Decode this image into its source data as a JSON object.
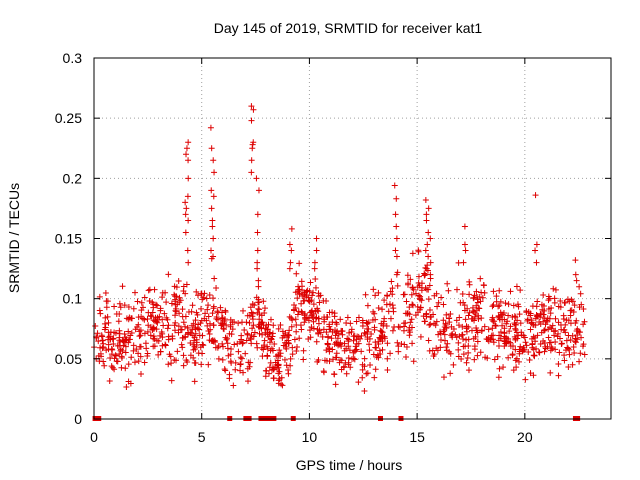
{
  "chart_data": {
    "type": "scatter",
    "title": "Day 145 of 2019, SRMTID for receiver kat1",
    "xlabel": "GPS time / hours",
    "ylabel": "SRMTID / TECUs",
    "xlim": [
      0,
      24
    ],
    "ylim": [
      0,
      0.3
    ],
    "grid": true,
    "marker": "+",
    "marker_color": "#dd0000",
    "x_ticks": [
      0,
      5,
      10,
      15,
      20
    ],
    "x_tick_labels": [
      "0",
      "5",
      "10",
      "15",
      "20"
    ],
    "y_ticks": [
      0,
      0.05,
      0.1,
      0.15,
      0.2,
      0.25,
      0.3
    ],
    "y_tick_labels": [
      "0",
      "0.05",
      "0.1",
      "0.15",
      "0.2",
      "0.25",
      "0.3"
    ],
    "envelope_description": "Approximate local cloud of SRMTID values (center, spread) versus GPS time; the plotted + markers are sampled within this envelope.",
    "envelope": [
      {
        "x": 0.0,
        "center": 0.075,
        "spread": 0.025
      },
      {
        "x": 1.0,
        "center": 0.062,
        "spread": 0.025
      },
      {
        "x": 2.0,
        "center": 0.07,
        "spread": 0.028
      },
      {
        "x": 3.0,
        "center": 0.078,
        "spread": 0.028
      },
      {
        "x": 4.0,
        "center": 0.082,
        "spread": 0.03
      },
      {
        "x": 4.5,
        "center": 0.072,
        "spread": 0.028
      },
      {
        "x": 5.0,
        "center": 0.08,
        "spread": 0.03
      },
      {
        "x": 5.5,
        "center": 0.09,
        "spread": 0.03
      },
      {
        "x": 6.0,
        "center": 0.075,
        "spread": 0.03
      },
      {
        "x": 6.5,
        "center": 0.058,
        "spread": 0.025
      },
      {
        "x": 7.0,
        "center": 0.055,
        "spread": 0.022
      },
      {
        "x": 7.5,
        "center": 0.085,
        "spread": 0.03
      },
      {
        "x": 8.0,
        "center": 0.065,
        "spread": 0.022
      },
      {
        "x": 8.5,
        "center": 0.045,
        "spread": 0.02
      },
      {
        "x": 9.0,
        "center": 0.06,
        "spread": 0.025
      },
      {
        "x": 9.5,
        "center": 0.09,
        "spread": 0.03
      },
      {
        "x": 10.0,
        "center": 0.095,
        "spread": 0.03
      },
      {
        "x": 10.5,
        "center": 0.075,
        "spread": 0.028
      },
      {
        "x": 11.0,
        "center": 0.065,
        "spread": 0.025
      },
      {
        "x": 12.0,
        "center": 0.062,
        "spread": 0.025
      },
      {
        "x": 12.5,
        "center": 0.06,
        "spread": 0.025
      },
      {
        "x": 13.0,
        "center": 0.075,
        "spread": 0.028
      },
      {
        "x": 14.0,
        "center": 0.08,
        "spread": 0.03
      },
      {
        "x": 15.0,
        "center": 0.095,
        "spread": 0.035
      },
      {
        "x": 15.5,
        "center": 0.1,
        "spread": 0.035
      },
      {
        "x": 16.0,
        "center": 0.07,
        "spread": 0.03
      },
      {
        "x": 17.0,
        "center": 0.075,
        "spread": 0.03
      },
      {
        "x": 18.0,
        "center": 0.08,
        "spread": 0.03
      },
      {
        "x": 19.0,
        "center": 0.075,
        "spread": 0.028
      },
      {
        "x": 20.0,
        "center": 0.068,
        "spread": 0.025
      },
      {
        "x": 21.0,
        "center": 0.08,
        "spread": 0.03
      },
      {
        "x": 22.0,
        "center": 0.075,
        "spread": 0.028
      },
      {
        "x": 22.8,
        "center": 0.07,
        "spread": 0.028
      }
    ],
    "bursts": [
      {
        "x": 4.3,
        "x_width": 0.15,
        "y": [
          0.23,
          0.225,
          0.22,
          0.215,
          0.2,
          0.185,
          0.18,
          0.175,
          0.17,
          0.165,
          0.155,
          0.14,
          0.13
        ]
      },
      {
        "x": 5.5,
        "x_width": 0.15,
        "y": [
          0.242,
          0.225,
          0.215,
          0.205,
          0.19,
          0.185,
          0.175,
          0.165,
          0.16,
          0.15,
          0.14,
          0.135
        ]
      },
      {
        "x": 7.35,
        "x_width": 0.12,
        "y": [
          0.26,
          0.257,
          0.248,
          0.23,
          0.228,
          0.225,
          0.215,
          0.205
        ]
      },
      {
        "x": 7.6,
        "x_width": 0.12,
        "y": [
          0.2,
          0.19,
          0.17,
          0.155,
          0.14,
          0.13,
          0.125,
          0.115,
          0.11
        ]
      },
      {
        "x": 9.15,
        "x_width": 0.12,
        "y": [
          0.158,
          0.145,
          0.14,
          0.13,
          0.125
        ]
      },
      {
        "x": 10.3,
        "x_width": 0.12,
        "y": [
          0.15,
          0.14,
          0.13,
          0.125
        ]
      },
      {
        "x": 14.0,
        "x_width": 0.15,
        "y": [
          0.194,
          0.183,
          0.17,
          0.16,
          0.15,
          0.14,
          0.135,
          0.12
        ]
      },
      {
        "x": 15.5,
        "x_width": 0.3,
        "y": [
          0.182,
          0.175,
          0.17,
          0.165,
          0.155,
          0.15,
          0.145,
          0.14,
          0.135,
          0.13,
          0.125,
          0.12
        ]
      },
      {
        "x": 17.2,
        "x_width": 0.2,
        "y": [
          0.16,
          0.145,
          0.14,
          0.13
        ]
      },
      {
        "x": 20.5,
        "x_width": 0.12,
        "y": [
          0.186,
          0.145,
          0.14,
          0.13
        ]
      },
      {
        "x": 22.4,
        "x_width": 0.12,
        "y": [
          0.132,
          0.12,
          0.115
        ]
      }
    ],
    "zero_markers_hours": [
      0.05,
      0.12,
      0.22,
      6.3,
      7.05,
      7.2,
      7.75,
      7.85,
      7.95,
      8.05,
      8.15,
      8.25,
      8.35,
      9.25,
      13.3,
      14.25,
      22.35,
      22.45
    ]
  }
}
